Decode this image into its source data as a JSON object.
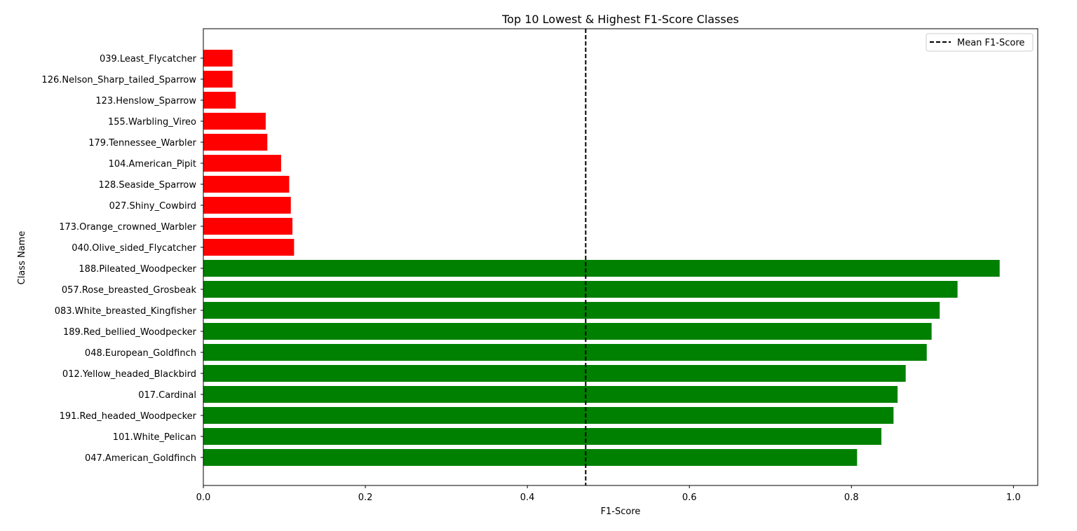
{
  "chart_data": {
    "type": "bar",
    "orientation": "horizontal",
    "title": "Top 10 Lowest & Highest F1-Score Classes",
    "xlabel": "F1-Score",
    "ylabel": "Class Name",
    "xlim": [
      0,
      1.03
    ],
    "xticks": [
      0.0,
      0.2,
      0.4,
      0.6,
      0.8,
      1.0
    ],
    "xtick_labels": [
      "0.0",
      "0.2",
      "0.4",
      "0.6",
      "0.8",
      "1.0"
    ],
    "grid": false,
    "legend_position": "top-right",
    "categories": [
      "039.Least_Flycatcher",
      "126.Nelson_Sharp_tailed_Sparrow",
      "123.Henslow_Sparrow",
      "155.Warbling_Vireo",
      "179.Tennessee_Warbler",
      "104.American_Pipit",
      "128.Seaside_Sparrow",
      "027.Shiny_Cowbird",
      "173.Orange_crowned_Warbler",
      "040.Olive_sided_Flycatcher",
      "188.Pileated_Woodpecker",
      "057.Rose_breasted_Grosbeak",
      "083.White_breasted_Kingfisher",
      "189.Red_bellied_Woodpecker",
      "048.European_Goldfinch",
      "012.Yellow_headed_Blackbird",
      "017.Cardinal",
      "191.Red_headed_Woodpecker",
      "101.White_Pelican",
      "047.American_Goldfinch"
    ],
    "values": [
      0.036,
      0.036,
      0.04,
      0.077,
      0.079,
      0.096,
      0.106,
      0.108,
      0.11,
      0.112,
      0.983,
      0.931,
      0.909,
      0.899,
      0.893,
      0.867,
      0.857,
      0.852,
      0.837,
      0.807
    ],
    "colors": [
      "#ff0000",
      "#ff0000",
      "#ff0000",
      "#ff0000",
      "#ff0000",
      "#ff0000",
      "#ff0000",
      "#ff0000",
      "#ff0000",
      "#ff0000",
      "#008000",
      "#008000",
      "#008000",
      "#008000",
      "#008000",
      "#008000",
      "#008000",
      "#008000",
      "#008000",
      "#008000"
    ],
    "reference_line": {
      "label": "Mean F1-Score",
      "value": 0.472,
      "style": "dashed",
      "color": "#000000"
    }
  }
}
